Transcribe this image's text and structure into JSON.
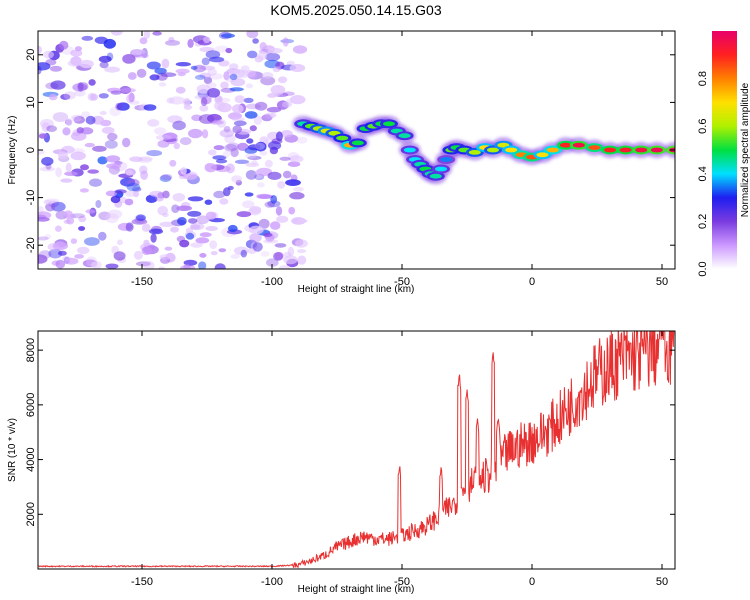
{
  "chart_data": [
    {
      "type": "heatmap",
      "title": "KOM5.2025.050.14.15.G03",
      "xlabel": "Height of straight line (km)",
      "ylabel": "Frequency (Hz)",
      "xlim": [
        -190,
        55
      ],
      "ylim": [
        -25,
        25
      ],
      "x_ticks": [
        -150,
        -100,
        -50,
        0,
        50
      ],
      "y_ticks": [
        -20,
        -10,
        0,
        10,
        20
      ],
      "colorbar": {
        "label": "Normalized spectral amplitude",
        "range": [
          0,
          1
        ],
        "ticks": [
          0.0,
          0.2,
          0.4,
          0.6,
          0.8
        ],
        "colors": [
          "#ffffff",
          "#cc99ff",
          "#7a3ce0",
          "#1e1ef0",
          "#00e0ff",
          "#00e040",
          "#b0f000",
          "#ffe000",
          "#ff8000",
          "#ff2020",
          "#e8006a"
        ]
      },
      "noise_region": {
        "x": [
          -190,
          -88
        ],
        "amplitude": [
          0.05,
          0.25
        ]
      },
      "ridge": [
        {
          "x": -88,
          "y": 5.5
        },
        {
          "x": -85,
          "y": 5
        },
        {
          "x": -82,
          "y": 4.5
        },
        {
          "x": -79,
          "y": 4
        },
        {
          "x": -76,
          "y": 3.5
        },
        {
          "x": -73,
          "y": 2.5
        },
        {
          "x": -70,
          "y": 1
        },
        {
          "x": -67,
          "y": 1.5
        },
        {
          "x": -64,
          "y": 4.5
        },
        {
          "x": -61,
          "y": 5
        },
        {
          "x": -58,
          "y": 5.5
        },
        {
          "x": -55,
          "y": 5.5
        },
        {
          "x": -52,
          "y": 4
        },
        {
          "x": -49,
          "y": 3
        },
        {
          "x": -47,
          "y": 0
        },
        {
          "x": -45,
          "y": -2
        },
        {
          "x": -43,
          "y": -3
        },
        {
          "x": -41,
          "y": -4
        },
        {
          "x": -39,
          "y": -5
        },
        {
          "x": -37,
          "y": -5.5
        },
        {
          "x": -35,
          "y": -4
        },
        {
          "x": -33,
          "y": -2
        },
        {
          "x": -31,
          "y": 0
        },
        {
          "x": -29,
          "y": 0.5
        },
        {
          "x": -26,
          "y": 0
        },
        {
          "x": -22,
          "y": -0.5
        },
        {
          "x": -18,
          "y": 0.5
        },
        {
          "x": -15,
          "y": 0
        },
        {
          "x": -11,
          "y": 1
        },
        {
          "x": -8,
          "y": 0
        },
        {
          "x": -4,
          "y": -1
        },
        {
          "x": 0,
          "y": -1.5
        },
        {
          "x": 4,
          "y": -1
        },
        {
          "x": 8,
          "y": 0
        },
        {
          "x": 13,
          "y": 1
        },
        {
          "x": 18,
          "y": 1
        },
        {
          "x": 24,
          "y": 0.5
        },
        {
          "x": 30,
          "y": 0
        },
        {
          "x": 36,
          "y": 0
        },
        {
          "x": 42,
          "y": 0
        },
        {
          "x": 48,
          "y": 0
        },
        {
          "x": 55,
          "y": 0
        }
      ],
      "ridge_amplitude": [
        0.45,
        0.55,
        0.6,
        0.65,
        0.6,
        0.55,
        0.75,
        0.5,
        0.5,
        0.55,
        0.5,
        0.5,
        0.45,
        0.45,
        0.4,
        0.4,
        0.45,
        0.5,
        0.45,
        0.45,
        0.4,
        0.35,
        0.55,
        0.5,
        0.55,
        0.6,
        0.7,
        0.6,
        0.65,
        0.7,
        0.8,
        0.85,
        0.7,
        0.75,
        0.9,
        0.95,
        0.85,
        0.9,
        0.92,
        0.95,
        0.97,
        0.98
      ]
    },
    {
      "type": "line",
      "xlabel": "Height of straight line (km)",
      "ylabel": "SNR (10 * v/v)",
      "xlim": [
        -190,
        55
      ],
      "ylim": [
        0,
        8700
      ],
      "x_ticks": [
        -150,
        -100,
        -50,
        0,
        50
      ],
      "y_ticks": [
        2000,
        4000,
        6000,
        8000
      ],
      "color": "#e83030",
      "series": [
        {
          "x": [
            -190,
            -150,
            -100,
            -90,
            -85,
            -80,
            -75,
            -70,
            -65,
            -60,
            -55,
            -50,
            -45,
            -40,
            -35,
            -30,
            -25,
            -20,
            -15,
            -10,
            -5,
            0,
            5,
            10,
            15,
            20,
            25,
            30,
            35,
            40,
            45,
            50,
            55
          ],
          "values": [
            100,
            100,
            100,
            150,
            300,
            500,
            800,
            1000,
            1200,
            1100,
            1100,
            1200,
            1400,
            1600,
            2000,
            2400,
            3000,
            3300,
            3500,
            4200,
            4500,
            4700,
            5000,
            5400,
            6000,
            6600,
            7100,
            7400,
            7700,
            7800,
            8000,
            8100,
            8100
          ],
          "peaks": [
            [
              -51,
              3800
            ],
            [
              -35,
              3700
            ],
            [
              -28,
              7100
            ],
            [
              -25,
              6600
            ],
            [
              -21,
              5400
            ],
            [
              -15,
              7900
            ],
            [
              -13,
              5500
            ],
            [
              50,
              8700
            ]
          ]
        }
      ]
    }
  ]
}
